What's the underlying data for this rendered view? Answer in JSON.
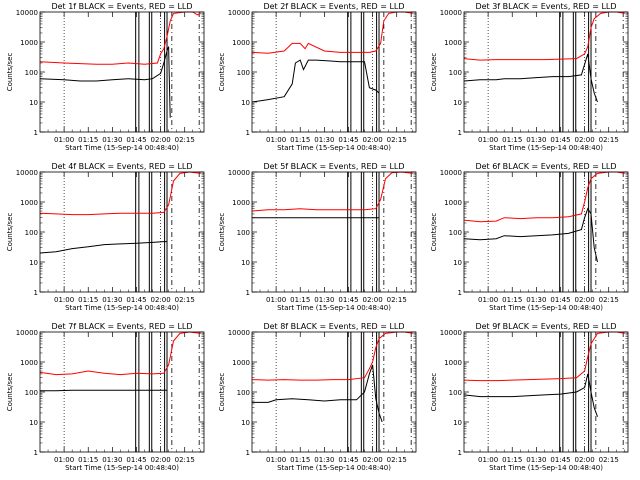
{
  "chart_data": {
    "type": "line",
    "layout": "3x3 grid",
    "x_tick_labels": [
      "01:00",
      "01:15",
      "01:30",
      "01:45",
      "02:00",
      "02:15"
    ],
    "x_ticks_min": [
      60,
      75,
      90,
      105,
      120,
      135
    ],
    "xlim_min": [
      45,
      147
    ],
    "ylim": [
      1,
      10000
    ],
    "y_scale": "log",
    "y_tick_labels": [
      "1",
      "10",
      "100",
      "1000",
      "10000"
    ],
    "ylabel": "Counts/sec",
    "xlabel": "Start Time (15-Sep-14 00:48:40)",
    "legend": "Det 1f BLACK = Events, RED = LLD",
    "series_colors": {
      "Events": "#000000",
      "LLD": "#ff0000"
    },
    "grid": false,
    "panels": [
      {
        "title": "Det 1f BLACK = Events, RED = LLD",
        "events": [
          [
            45,
            60
          ],
          [
            60,
            55
          ],
          [
            70,
            50
          ],
          [
            80,
            50
          ],
          [
            90,
            55
          ],
          [
            100,
            60
          ],
          [
            110,
            55
          ],
          [
            115,
            60
          ],
          [
            120,
            90
          ],
          [
            122,
            200
          ],
          [
            124,
            500
          ],
          [
            125,
            700
          ],
          [
            126,
            3
          ]
        ],
        "lld": [
          [
            45,
            220
          ],
          [
            60,
            200
          ],
          [
            70,
            190
          ],
          [
            80,
            180
          ],
          [
            90,
            180
          ],
          [
            100,
            200
          ],
          [
            110,
            180
          ],
          [
            118,
            200
          ],
          [
            120,
            400
          ],
          [
            122,
            600
          ],
          [
            124,
            1500
          ],
          [
            126,
            5000
          ],
          [
            128,
            9000
          ],
          [
            135,
            10000
          ],
          [
            140,
            10000
          ],
          [
            143,
            8000
          ],
          [
            145,
            9000
          ]
        ],
        "solid_min": [
          104.5,
          106.5,
          113,
          114.5,
          122.5,
          124
        ],
        "dashed_min": [
          127,
          144
        ],
        "dotted_min": [
          60,
          120
        ]
      },
      {
        "title": "Det 2f BLACK = Events, RED = LLD",
        "events": [
          [
            45,
            10
          ],
          [
            55,
            12
          ],
          [
            65,
            15
          ],
          [
            70,
            40
          ],
          [
            72,
            200
          ],
          [
            75,
            250
          ],
          [
            77,
            120
          ],
          [
            80,
            250
          ],
          [
            85,
            250
          ],
          [
            90,
            240
          ],
          [
            95,
            230
          ],
          [
            100,
            220
          ],
          [
            105,
            220
          ],
          [
            115,
            220
          ],
          [
            118,
            30
          ],
          [
            122,
            25
          ],
          [
            124,
            20
          ]
        ],
        "lld": [
          [
            45,
            450
          ],
          [
            55,
            420
          ],
          [
            65,
            500
          ],
          [
            70,
            900
          ],
          [
            75,
            900
          ],
          [
            78,
            600
          ],
          [
            80,
            900
          ],
          [
            90,
            500
          ],
          [
            100,
            450
          ],
          [
            110,
            450
          ],
          [
            118,
            450
          ],
          [
            122,
            500
          ],
          [
            125,
            900
          ],
          [
            127,
            5000
          ],
          [
            130,
            9000
          ],
          [
            135,
            10000
          ],
          [
            140,
            10000
          ],
          [
            145,
            9000
          ]
        ],
        "solid_min": [
          104.5,
          106.5,
          113,
          114.5,
          122.5,
          124
        ],
        "dashed_min": [
          127,
          144
        ],
        "dotted_min": [
          60,
          120
        ]
      },
      {
        "title": "Det 3f BLACK = Events, RED = LLD",
        "events": [
          [
            45,
            50
          ],
          [
            55,
            55
          ],
          [
            65,
            55
          ],
          [
            70,
            60
          ],
          [
            80,
            60
          ],
          [
            90,
            65
          ],
          [
            100,
            70
          ],
          [
            110,
            70
          ],
          [
            118,
            80
          ],
          [
            122,
            400
          ],
          [
            124,
            60
          ],
          [
            126,
            20
          ],
          [
            128,
            10
          ]
        ],
        "lld": [
          [
            45,
            280
          ],
          [
            55,
            250
          ],
          [
            65,
            260
          ],
          [
            75,
            260
          ],
          [
            85,
            260
          ],
          [
            95,
            260
          ],
          [
            105,
            270
          ],
          [
            115,
            280
          ],
          [
            120,
            400
          ],
          [
            122,
            700
          ],
          [
            124,
            3000
          ],
          [
            126,
            6000
          ],
          [
            130,
            9000
          ],
          [
            135,
            10000
          ],
          [
            140,
            10000
          ],
          [
            145,
            9000
          ]
        ],
        "solid_min": [
          104.5,
          106.5,
          113,
          114.5,
          122.5,
          124
        ],
        "dashed_min": [
          127,
          144
        ],
        "dotted_min": [
          60,
          120
        ]
      },
      {
        "title": "Det 4f BLACK = Events, RED = LLD",
        "events": [
          [
            45,
            20
          ],
          [
            55,
            22
          ],
          [
            65,
            28
          ],
          [
            75,
            32
          ],
          [
            85,
            38
          ],
          [
            95,
            40
          ],
          [
            105,
            42
          ],
          [
            115,
            45
          ],
          [
            122,
            48
          ],
          [
            124,
            48
          ]
        ],
        "lld": [
          [
            45,
            420
          ],
          [
            55,
            400
          ],
          [
            65,
            380
          ],
          [
            75,
            380
          ],
          [
            85,
            400
          ],
          [
            95,
            420
          ],
          [
            105,
            420
          ],
          [
            115,
            420
          ],
          [
            122,
            450
          ],
          [
            125,
            800
          ],
          [
            128,
            5000
          ],
          [
            132,
            9000
          ],
          [
            138,
            10000
          ],
          [
            145,
            9000
          ]
        ],
        "solid_min": [
          104.5,
          106.5,
          113,
          114.5,
          122.5,
          124
        ],
        "dashed_min": [
          127,
          144
        ],
        "dotted_min": [
          60,
          120
        ]
      },
      {
        "title": "Det 5f BLACK = Events, RED = LLD",
        "events": [
          [
            45,
            300
          ],
          [
            55,
            300
          ],
          [
            65,
            300
          ],
          [
            75,
            300
          ],
          [
            85,
            300
          ],
          [
            95,
            300
          ],
          [
            105,
            300
          ],
          [
            115,
            300
          ],
          [
            122,
            300
          ],
          [
            124,
            300
          ]
        ],
        "lld": [
          [
            45,
            500
          ],
          [
            55,
            550
          ],
          [
            65,
            550
          ],
          [
            75,
            600
          ],
          [
            85,
            550
          ],
          [
            95,
            550
          ],
          [
            105,
            550
          ],
          [
            115,
            550
          ],
          [
            122,
            600
          ],
          [
            125,
            1200
          ],
          [
            128,
            6000
          ],
          [
            132,
            9500
          ],
          [
            138,
            10000
          ],
          [
            145,
            9000
          ]
        ],
        "solid_min": [
          104.5,
          106.5,
          113,
          114.5,
          122.5,
          124
        ],
        "dashed_min": [
          127,
          144
        ],
        "dotted_min": [
          60,
          120
        ]
      },
      {
        "title": "Det 6f BLACK = Events, RED = LLD",
        "events": [
          [
            45,
            60
          ],
          [
            55,
            55
          ],
          [
            65,
            60
          ],
          [
            70,
            75
          ],
          [
            80,
            70
          ],
          [
            90,
            75
          ],
          [
            100,
            80
          ],
          [
            110,
            90
          ],
          [
            118,
            120
          ],
          [
            120,
            300
          ],
          [
            122,
            600
          ],
          [
            124,
            400
          ],
          [
            126,
            30
          ],
          [
            128,
            10
          ]
        ],
        "lld": [
          [
            45,
            250
          ],
          [
            55,
            220
          ],
          [
            65,
            230
          ],
          [
            70,
            300
          ],
          [
            80,
            280
          ],
          [
            90,
            300
          ],
          [
            100,
            300
          ],
          [
            110,
            320
          ],
          [
            118,
            400
          ],
          [
            120,
            1000
          ],
          [
            122,
            3000
          ],
          [
            124,
            6000
          ],
          [
            128,
            9000
          ],
          [
            135,
            10000
          ],
          [
            140,
            10000
          ],
          [
            145,
            9000
          ]
        ],
        "solid_min": [
          104.5,
          106.5,
          113,
          114.5,
          122.5,
          124
        ],
        "dashed_min": [
          127,
          144
        ],
        "dotted_min": [
          60,
          120
        ]
      },
      {
        "title": "Det 7f BLACK = Events, RED = LLD",
        "events": [
          [
            45,
            110
          ],
          [
            55,
            110
          ],
          [
            65,
            115
          ],
          [
            75,
            115
          ],
          [
            85,
            115
          ],
          [
            95,
            115
          ],
          [
            105,
            115
          ],
          [
            115,
            115
          ],
          [
            122,
            115
          ],
          [
            124,
            115
          ]
        ],
        "lld": [
          [
            45,
            450
          ],
          [
            55,
            380
          ],
          [
            65,
            400
          ],
          [
            75,
            500
          ],
          [
            85,
            420
          ],
          [
            95,
            380
          ],
          [
            105,
            420
          ],
          [
            115,
            400
          ],
          [
            122,
            420
          ],
          [
            125,
            800
          ],
          [
            128,
            5000
          ],
          [
            132,
            9000
          ],
          [
            138,
            10000
          ],
          [
            145,
            9000
          ]
        ],
        "solid_min": [
          104.5,
          106.5,
          113,
          114.5,
          122.5,
          124
        ],
        "dashed_min": [
          127,
          144
        ],
        "dotted_min": [
          60,
          120
        ]
      },
      {
        "title": "Det 8f BLACK = Events, RED = LLD",
        "events": [
          [
            45,
            45
          ],
          [
            55,
            45
          ],
          [
            60,
            55
          ],
          [
            70,
            60
          ],
          [
            80,
            55
          ],
          [
            90,
            50
          ],
          [
            100,
            55
          ],
          [
            110,
            55
          ],
          [
            115,
            100
          ],
          [
            118,
            400
          ],
          [
            120,
            800
          ],
          [
            122,
            60
          ],
          [
            124,
            20
          ],
          [
            126,
            10
          ]
        ],
        "lld": [
          [
            45,
            260
          ],
          [
            55,
            250
          ],
          [
            65,
            260
          ],
          [
            75,
            250
          ],
          [
            85,
            250
          ],
          [
            95,
            260
          ],
          [
            105,
            260
          ],
          [
            115,
            300
          ],
          [
            118,
            600
          ],
          [
            120,
            1000
          ],
          [
            122,
            3000
          ],
          [
            124,
            6000
          ],
          [
            128,
            9000
          ],
          [
            135,
            10000
          ],
          [
            140,
            10000
          ],
          [
            145,
            9000
          ]
        ],
        "solid_min": [
          104.5,
          106.5,
          113,
          114.5,
          122.5,
          124
        ],
        "dashed_min": [
          127,
          144
        ],
        "dotted_min": [
          60,
          120
        ]
      },
      {
        "title": "Det 9f BLACK = Events, RED = LLD",
        "events": [
          [
            45,
            80
          ],
          [
            55,
            70
          ],
          [
            65,
            70
          ],
          [
            75,
            70
          ],
          [
            85,
            75
          ],
          [
            95,
            80
          ],
          [
            105,
            85
          ],
          [
            115,
            100
          ],
          [
            120,
            140
          ],
          [
            122,
            400
          ],
          [
            124,
            100
          ],
          [
            126,
            30
          ],
          [
            128,
            15
          ]
        ],
        "lld": [
          [
            45,
            250
          ],
          [
            55,
            240
          ],
          [
            65,
            240
          ],
          [
            75,
            250
          ],
          [
            85,
            260
          ],
          [
            95,
            270
          ],
          [
            105,
            280
          ],
          [
            115,
            300
          ],
          [
            120,
            500
          ],
          [
            122,
            1500
          ],
          [
            124,
            4000
          ],
          [
            128,
            9000
          ],
          [
            135,
            10000
          ],
          [
            140,
            10000
          ],
          [
            145,
            9000
          ]
        ],
        "solid_min": [
          104.5,
          106.5,
          113,
          114.5,
          122.5,
          124
        ],
        "dashed_min": [
          127,
          144
        ],
        "dotted_min": [
          60,
          120
        ]
      }
    ]
  }
}
